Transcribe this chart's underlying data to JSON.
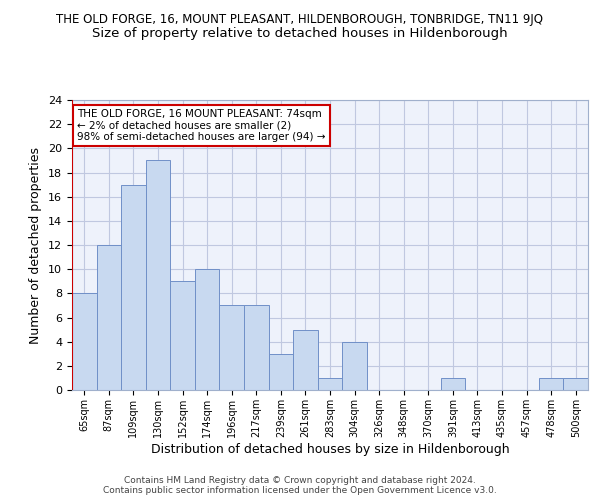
{
  "title": "THE OLD FORGE, 16, MOUNT PLEASANT, HILDENBOROUGH, TONBRIDGE, TN11 9JQ",
  "subtitle": "Size of property relative to detached houses in Hildenborough",
  "xlabel": "Distribution of detached houses by size in Hildenborough",
  "ylabel": "Number of detached properties",
  "categories": [
    "65sqm",
    "87sqm",
    "109sqm",
    "130sqm",
    "152sqm",
    "174sqm",
    "196sqm",
    "217sqm",
    "239sqm",
    "261sqm",
    "283sqm",
    "304sqm",
    "326sqm",
    "348sqm",
    "370sqm",
    "391sqm",
    "413sqm",
    "435sqm",
    "457sqm",
    "478sqm",
    "500sqm"
  ],
  "values": [
    8,
    12,
    17,
    19,
    9,
    10,
    7,
    7,
    3,
    5,
    1,
    4,
    0,
    0,
    0,
    1,
    0,
    0,
    0,
    1,
    1
  ],
  "bar_color": "#c8d9f0",
  "bar_edge_color": "#7090c8",
  "highlight_line_color": "#cc0000",
  "ylim": [
    0,
    24
  ],
  "yticks": [
    0,
    2,
    4,
    6,
    8,
    10,
    12,
    14,
    16,
    18,
    20,
    22,
    24
  ],
  "annotation_text": "THE OLD FORGE, 16 MOUNT PLEASANT: 74sqm\n← 2% of detached houses are smaller (2)\n98% of semi-detached houses are larger (94) →",
  "annotation_box_color": "#ffffff",
  "annotation_box_edge": "#cc0000",
  "footer_text": "Contains HM Land Registry data © Crown copyright and database right 2024.\nContains public sector information licensed under the Open Government Licence v3.0.",
  "bg_color": "#eef2fb",
  "grid_color": "#c0c8e0",
  "title_fontsize": 8.5,
  "subtitle_fontsize": 9.5,
  "ylabel_fontsize": 9,
  "xlabel_fontsize": 9,
  "tick_fontsize": 8,
  "xtick_fontsize": 7
}
